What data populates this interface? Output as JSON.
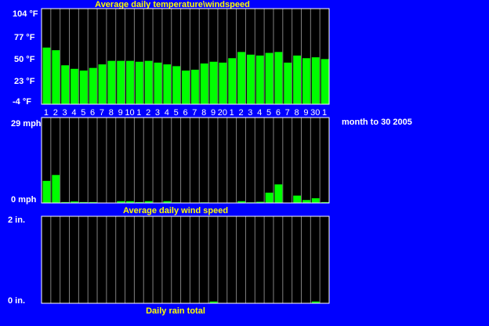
{
  "side_note": "month to 30 2005",
  "colors": {
    "background": "#0000ff",
    "plot_bg": "#000000",
    "bar": "#00ff00",
    "grid": "#808080",
    "title": "#ffff00",
    "text": "#ffffff"
  },
  "chart_data": [
    {
      "type": "bar",
      "title": "Average daily temperature\\windspeed",
      "unit": "°F",
      "ylim": [
        -4,
        104
      ],
      "y_ticks": [
        "104 °F",
        "77 °F",
        "50 °F",
        "23 °F",
        "-4 °F"
      ],
      "categories": [
        "1",
        "2",
        "3",
        "4",
        "5",
        "6",
        "7",
        "8",
        "9",
        "10",
        "1",
        "2",
        "3",
        "4",
        "5",
        "6",
        "7",
        "8",
        "9",
        "20",
        "1",
        "2",
        "3",
        "4",
        "5",
        "6",
        "7",
        "8",
        "9",
        "30",
        "1"
      ],
      "values": [
        60,
        57,
        40,
        36,
        34,
        37,
        41,
        45,
        45,
        45,
        44,
        45,
        43,
        41,
        39,
        34,
        35,
        42,
        44,
        43,
        48,
        55,
        52,
        51,
        54,
        55,
        43,
        51,
        48,
        49,
        47
      ]
    },
    {
      "type": "bar",
      "title": "Average daily wind speed",
      "unit": "mph",
      "ylim": [
        0,
        29
      ],
      "y_ticks": [
        "29 mph",
        "0 mph"
      ],
      "values": [
        7.5,
        9.5,
        0.3,
        0.5,
        0.3,
        0.3,
        0,
        0,
        0.6,
        0.6,
        0.3,
        0.6,
        0,
        0.6,
        0.2,
        0,
        0,
        0.2,
        0,
        0,
        0,
        0.6,
        0.2,
        0.4,
        3.5,
        6.3,
        0,
        2.5,
        1,
        1.6,
        0.3
      ]
    },
    {
      "type": "bar",
      "title": "Daily rain total",
      "unit": "in.",
      "ylim": [
        0,
        2
      ],
      "y_ticks": [
        "2 in.",
        "0 in."
      ],
      "values": [
        0,
        0,
        0,
        0,
        0,
        0,
        0,
        0,
        0,
        0,
        0,
        0,
        0,
        0,
        0,
        0,
        0,
        0,
        0.04,
        0,
        0,
        0,
        0,
        0,
        0,
        0,
        0,
        0,
        0,
        0.04,
        0
      ]
    }
  ]
}
